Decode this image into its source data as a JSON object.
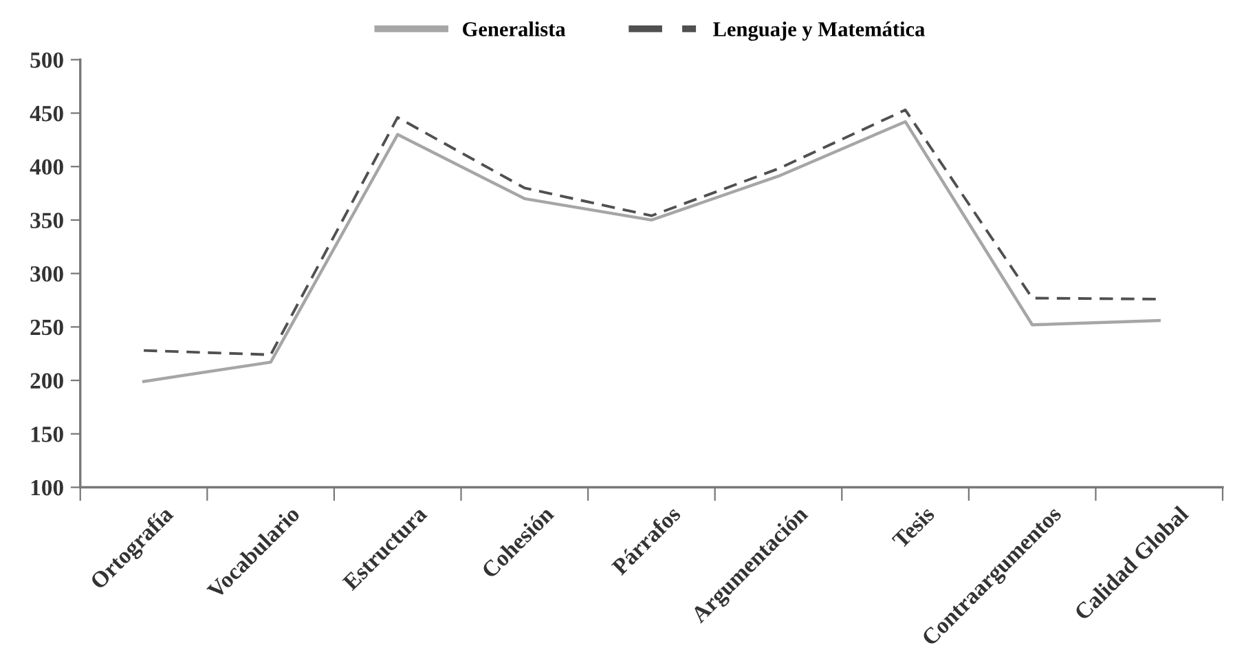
{
  "chart_data": {
    "type": "line",
    "categories": [
      "Ortografía",
      "Vocabulario",
      "Estructura",
      "Cohesión",
      "Párrafos",
      "Argumentación",
      "Tesis",
      "Contraargumentos",
      "Calidad Global"
    ],
    "series": [
      {
        "name": "Generalista",
        "color": "#a6a6a6",
        "line_style": "solid",
        "values": [
          199,
          217,
          430,
          370,
          350,
          391,
          442,
          252,
          256
        ]
      },
      {
        "name": "Lenguaje y Matemática",
        "color": "#505050",
        "line_style": "dashed",
        "values": [
          228,
          224,
          446,
          380,
          354,
          398,
          453,
          277,
          276
        ]
      }
    ],
    "ylim": [
      100,
      500
    ],
    "yticks": [
      100,
      150,
      200,
      250,
      300,
      350,
      400,
      450,
      500
    ],
    "grid": false,
    "legend": "top"
  }
}
